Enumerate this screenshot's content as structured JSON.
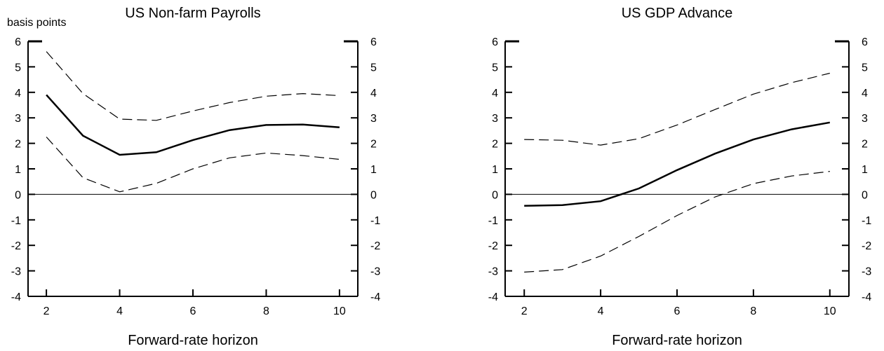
{
  "unit_label": "basis points",
  "chart_data": [
    {
      "type": "line",
      "title": "US Non-farm Payrolls",
      "xlabel": "Forward-rate horizon",
      "ylabel": "basis points",
      "xlim": [
        1.5,
        10.5
      ],
      "ylim": [
        -4,
        6
      ],
      "x_ticks": [
        2,
        4,
        6,
        8,
        10
      ],
      "y_ticks": [
        -4,
        -3,
        -2,
        -1,
        0,
        1,
        2,
        3,
        4,
        5,
        6
      ],
      "zero_line": true,
      "grid": false,
      "series": [
        {
          "role": "estimate",
          "style": "solid",
          "x": [
            2,
            3,
            4,
            5,
            6,
            7,
            8,
            9,
            10
          ],
          "values": [
            3.9,
            2.3,
            1.55,
            1.65,
            2.13,
            2.52,
            2.72,
            2.74,
            2.63
          ]
        },
        {
          "role": "upper_band",
          "style": "dashed",
          "x": [
            2,
            3,
            4,
            5,
            6,
            7,
            8,
            9,
            10
          ],
          "values": [
            5.6,
            3.95,
            2.95,
            2.9,
            3.27,
            3.6,
            3.85,
            3.95,
            3.87
          ]
        },
        {
          "role": "lower_band",
          "style": "dashed",
          "x": [
            2,
            3,
            4,
            5,
            6,
            7,
            8,
            9,
            10
          ],
          "values": [
            2.25,
            0.65,
            0.1,
            0.43,
            1.0,
            1.43,
            1.62,
            1.52,
            1.37
          ]
        }
      ]
    },
    {
      "type": "line",
      "title": "US GDP Advance",
      "xlabel": "Forward-rate horizon",
      "ylabel": "",
      "xlim": [
        1.5,
        10.5
      ],
      "ylim": [
        -4,
        6
      ],
      "x_ticks": [
        2,
        4,
        6,
        8,
        10
      ],
      "y_ticks": [
        -4,
        -3,
        -2,
        -1,
        0,
        1,
        2,
        3,
        4,
        5,
        6
      ],
      "zero_line": true,
      "grid": false,
      "series": [
        {
          "role": "estimate",
          "style": "solid",
          "x": [
            2,
            3,
            4,
            5,
            6,
            7,
            8,
            9,
            10
          ],
          "values": [
            -0.45,
            -0.42,
            -0.27,
            0.23,
            0.95,
            1.6,
            2.15,
            2.55,
            2.82
          ]
        },
        {
          "role": "upper_band",
          "style": "dashed",
          "x": [
            2,
            3,
            4,
            5,
            6,
            7,
            8,
            9,
            10
          ],
          "values": [
            2.15,
            2.12,
            1.93,
            2.18,
            2.72,
            3.33,
            3.93,
            4.38,
            4.75
          ]
        },
        {
          "role": "lower_band",
          "style": "dashed",
          "x": [
            2,
            3,
            4,
            5,
            6,
            7,
            8,
            9,
            10
          ],
          "values": [
            -3.05,
            -2.95,
            -2.42,
            -1.65,
            -0.83,
            -0.1,
            0.42,
            0.72,
            0.9
          ]
        }
      ]
    }
  ]
}
